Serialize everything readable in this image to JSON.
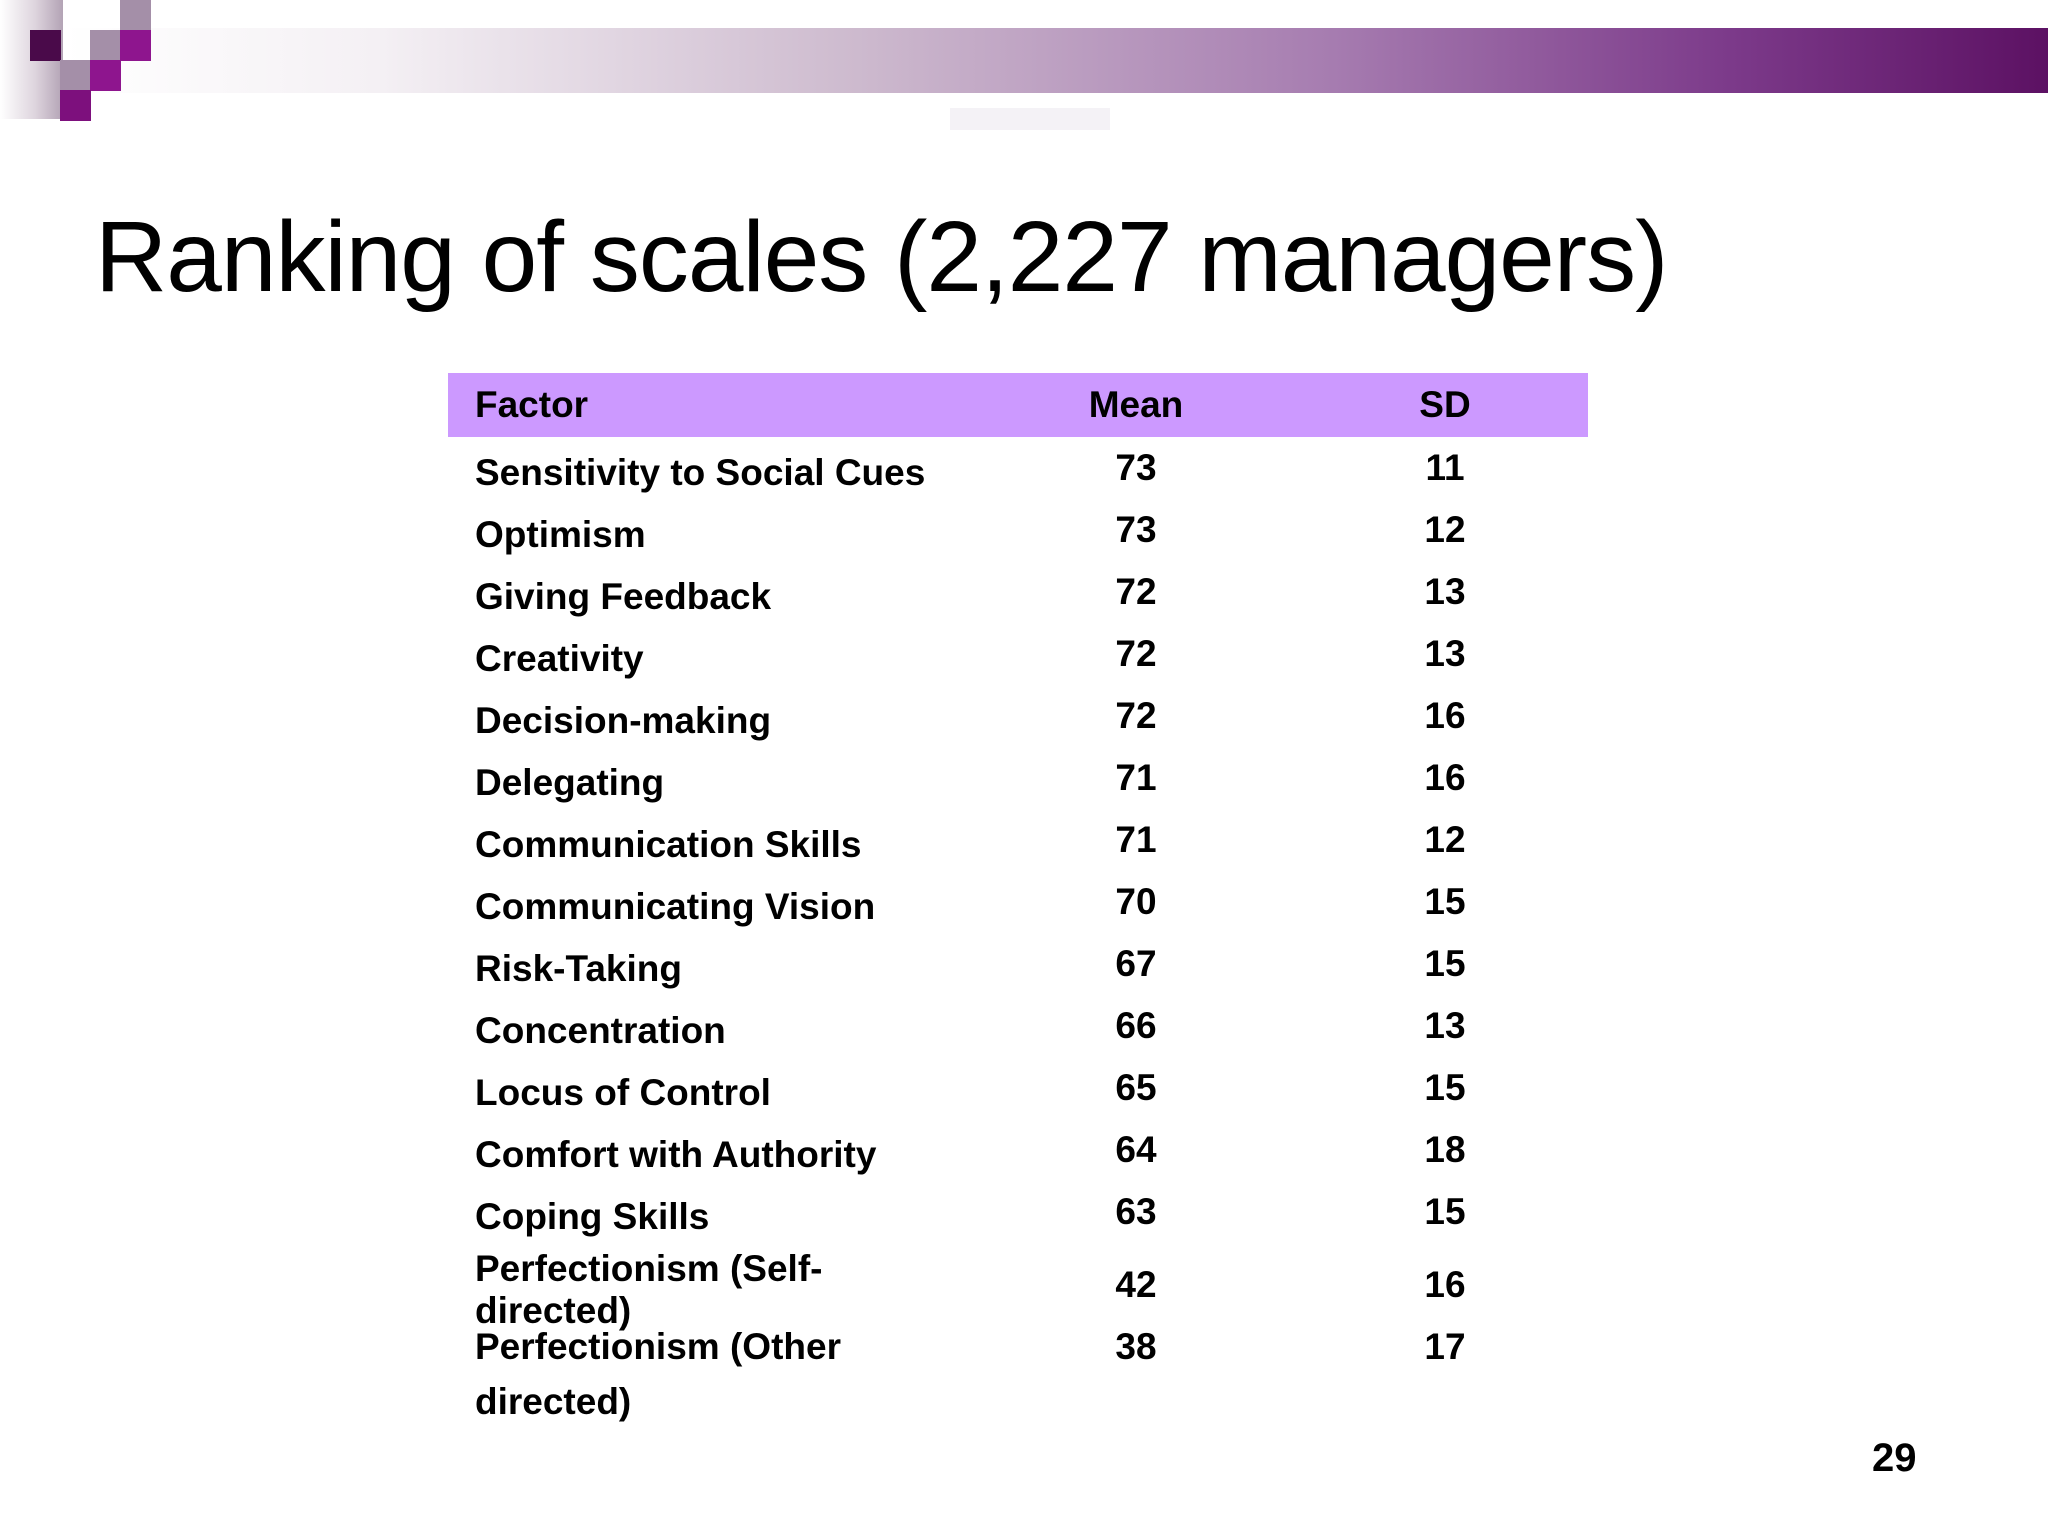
{
  "slide": {
    "title": "Ranking of scales (2,227 managers)",
    "page_number": "29"
  },
  "table": {
    "columns": [
      "Factor",
      "Mean",
      "SD"
    ],
    "rows": [
      {
        "factor": "Sensitivity to Social Cues",
        "mean": "73",
        "sd": "11"
      },
      {
        "factor": "Optimism",
        "mean": "73",
        "sd": "12"
      },
      {
        "factor": "Giving Feedback",
        "mean": "72",
        "sd": "13"
      },
      {
        "factor": "Creativity",
        "mean": "72",
        "sd": "13"
      },
      {
        "factor": "Decision-making",
        "mean": "72",
        "sd": "16"
      },
      {
        "factor": "Delegating",
        "mean": "71",
        "sd": "16"
      },
      {
        "factor": "Communication Skills",
        "mean": "71",
        "sd": "12"
      },
      {
        "factor": "Communicating Vision",
        "mean": "70",
        "sd": "15"
      },
      {
        "factor": "Risk-Taking",
        "mean": "67",
        "sd": "15"
      },
      {
        "factor": "Concentration",
        "mean": "66",
        "sd": "13"
      },
      {
        "factor": "Locus of Control",
        "mean": "65",
        "sd": "15"
      },
      {
        "factor": "Comfort with Authority",
        "mean": "64",
        "sd": "18"
      },
      {
        "factor": "Coping Skills",
        "mean": "63",
        "sd": "15"
      },
      {
        "factor": "Perfectionism (Self-directed)",
        "mean": "42",
        "sd": "16"
      },
      {
        "factor": "Perfectionism (Other directed)",
        "mean": "38",
        "sd": "17"
      }
    ]
  },
  "colors": {
    "header-bg": "#cc99ff",
    "band-start": "#ffffff",
    "band-end": "#5c1163",
    "sq-dark": "#4a0a4a",
    "sq-bright": "#8e158e",
    "sq-mid": "#7d107d",
    "sq-mauve": "#a48fa8"
  }
}
